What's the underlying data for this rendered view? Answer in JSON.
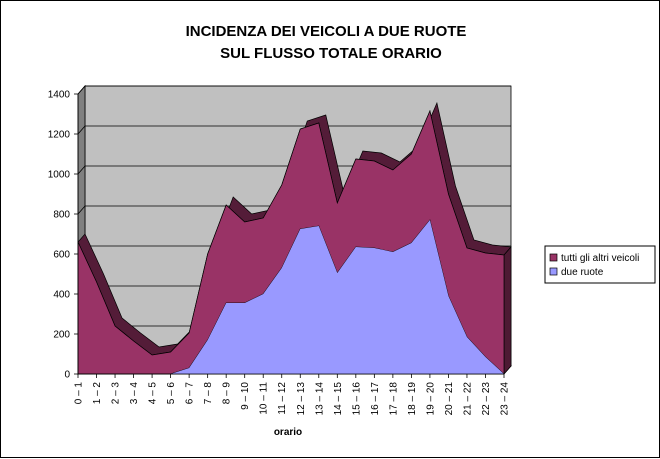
{
  "chart_data": {
    "type": "area",
    "stacked": true,
    "three_d": true,
    "title_lines": [
      "INCIDENZA DEI VEICOLI A DUE RUOTE",
      "SUL FLUSSO TOTALE ORARIO"
    ],
    "xlabel": "orario",
    "ylabel": "",
    "ylim": [
      0,
      1400
    ],
    "yticks": [
      0,
      200,
      400,
      600,
      800,
      1000,
      1200,
      1400
    ],
    "grid": true,
    "legend_position": "right",
    "categories": [
      "0 – 1",
      "1 – 2",
      "2 – 3",
      "3 – 4",
      "4 – 5",
      "5 – 6",
      "6 – 7",
      "7 – 8",
      "8 – 9",
      "9 – 10",
      "10 – 11",
      "11 – 12",
      "12 – 13",
      "13 – 14",
      "14 – 15",
      "15 – 16",
      "16 – 17",
      "17 – 18",
      "18 – 19",
      "19 – 20",
      "20 – 21",
      "21 – 22",
      "22 – 23",
      "23 – 24"
    ],
    "series": [
      {
        "name": "due ruote",
        "color": "#9999ff",
        "values": [
          0,
          0,
          0,
          0,
          0,
          0,
          30,
          170,
          355,
          355,
          400,
          530,
          725,
          740,
          505,
          635,
          630,
          610,
          655,
          770,
          390,
          185,
          85,
          0
        ]
      },
      {
        "name": "tutti gli altri veicoli",
        "color": "#993366",
        "values": [
          660,
          460,
          240,
          165,
          95,
          110,
          175,
          430,
          490,
          405,
          380,
          415,
          500,
          515,
          350,
          440,
          435,
          410,
          445,
          545,
          510,
          445,
          520,
          595
        ]
      }
    ],
    "plot_background": "#c0c0c0",
    "wall_color": "#808080"
  }
}
